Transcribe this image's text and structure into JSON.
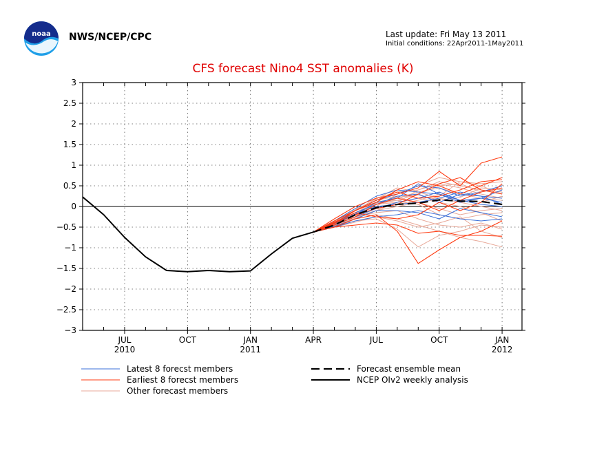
{
  "header": {
    "agency": "NWS/NCEP/CPC",
    "last_update": "Last update: Fri May 13 2011",
    "initial_conditions": "Initial conditions: 22Apr2011-1May2011",
    "logo_text": "noaa"
  },
  "colors": {
    "title": "#e00000",
    "latest": "#3a6fd8",
    "earliest": "#ff3a10",
    "other": "#e8a898",
    "mean": "#000000",
    "analysis": "#000000"
  },
  "chart_data": {
    "type": "line",
    "title": "CFS forecast Nino4 SST anomalies (K)",
    "xlabel": "",
    "ylabel": "",
    "ylim": [
      -3,
      3
    ],
    "yticks": [
      3,
      2.5,
      2,
      1.5,
      1,
      0.5,
      0,
      -0.5,
      -1,
      -1.5,
      -2,
      -2.5,
      -3
    ],
    "grid": true,
    "x_months_since_apr2010": [
      0,
      12.5
    ],
    "xticks": [
      {
        "m": 3,
        "label": "JUL",
        "year": "2010"
      },
      {
        "m": 6,
        "label": "OCT",
        "year": ""
      },
      {
        "m": 9,
        "label": "JAN",
        "year": "2011"
      },
      {
        "m": 12,
        "label": "APR",
        "year": ""
      },
      {
        "m": 15,
        "label": "JUL",
        "year": ""
      },
      {
        "m": 18,
        "label": "OCT",
        "year": ""
      },
      {
        "m": 21,
        "label": "JAN",
        "year": "2012"
      }
    ],
    "legend": [
      {
        "label": "Latest 8 forecst members",
        "style": "latest"
      },
      {
        "label": "Earliest 8 forecst members",
        "style": "earliest"
      },
      {
        "label": "Other forecast members",
        "style": "other"
      },
      {
        "label": "Forecast ensemble mean",
        "style": "mean"
      },
      {
        "label": "NCEP OIv2 weekly analysis",
        "style": "analysis"
      }
    ],
    "analysis": {
      "name": "NCEP OIv2 weekly analysis",
      "x": [
        1,
        2,
        3,
        4,
        5,
        6,
        7,
        8,
        9,
        10,
        11,
        12
      ],
      "y": [
        0.23,
        -0.2,
        -0.75,
        -1.22,
        -1.55,
        -1.58,
        -1.55,
        -1.58,
        -1.56,
        -1.15,
        -0.77,
        -0.62
      ]
    },
    "ensemble_mean": {
      "name": "Forecast ensemble mean",
      "x": [
        12,
        13,
        14,
        15,
        16,
        17,
        18,
        19,
        20,
        21
      ],
      "y": [
        -0.62,
        -0.45,
        -0.2,
        -0.03,
        0.05,
        0.08,
        0.16,
        0.13,
        0.12,
        0.05
      ]
    },
    "members_x": [
      12,
      13,
      14,
      15,
      16,
      17,
      18,
      19,
      20,
      21
    ],
    "latest_members": [
      [
        -0.62,
        -0.4,
        -0.1,
        0.15,
        0.3,
        0.5,
        0.45,
        0.25,
        0.35,
        0.5
      ],
      [
        -0.62,
        -0.45,
        -0.25,
        -0.05,
        0.1,
        0.2,
        0.35,
        0.15,
        0.05,
        0.0
      ],
      [
        -0.62,
        -0.35,
        -0.05,
        0.25,
        0.4,
        0.35,
        0.3,
        0.15,
        0.2,
        0.1
      ],
      [
        -0.62,
        -0.5,
        -0.35,
        -0.25,
        -0.2,
        -0.1,
        -0.2,
        -0.3,
        -0.35,
        -0.3
      ],
      [
        -0.62,
        -0.42,
        -0.15,
        0.05,
        0.25,
        0.3,
        0.1,
        0.3,
        0.25,
        0.2
      ],
      [
        -0.62,
        -0.48,
        -0.3,
        -0.1,
        -0.1,
        -0.15,
        -0.3,
        -0.05,
        -0.15,
        -0.25
      ],
      [
        -0.62,
        -0.4,
        -0.2,
        0.1,
        0.2,
        0.55,
        0.3,
        0.1,
        0.2,
        0.4
      ],
      [
        -0.62,
        -0.45,
        -0.18,
        0.0,
        0.05,
        0.1,
        0.2,
        0.35,
        0.25,
        0.05
      ]
    ],
    "earliest_members": [
      [
        -0.62,
        -0.3,
        0.0,
        0.2,
        0.3,
        0.45,
        0.85,
        0.5,
        1.05,
        1.2
      ],
      [
        -0.62,
        -0.5,
        -0.3,
        -0.2,
        -0.6,
        -1.38,
        -1.05,
        -0.75,
        -0.6,
        -0.35
      ],
      [
        -0.62,
        -0.35,
        -0.1,
        0.1,
        0.4,
        0.6,
        0.5,
        0.3,
        0.5,
        0.7
      ],
      [
        -0.62,
        -0.45,
        -0.25,
        0.05,
        0.2,
        0.1,
        -0.1,
        0.15,
        0.35,
        0.45
      ],
      [
        -0.62,
        -0.4,
        -0.2,
        -0.05,
        0.05,
        0.3,
        0.55,
        0.7,
        0.4,
        0.3
      ],
      [
        -0.62,
        -0.5,
        -0.45,
        -0.4,
        -0.45,
        -0.65,
        -0.6,
        -0.7,
        -0.7,
        -0.72
      ],
      [
        -0.62,
        -0.38,
        -0.15,
        -0.25,
        -0.3,
        -0.2,
        0.1,
        -0.1,
        0.1,
        0.55
      ],
      [
        -0.62,
        -0.42,
        -0.1,
        0.15,
        0.35,
        0.2,
        0.25,
        0.4,
        0.6,
        0.65
      ]
    ],
    "other_members": [
      [
        -0.62,
        -0.45,
        -0.2,
        0.05,
        0.15,
        0.3,
        0.5,
        0.55,
        0.35,
        0.5
      ],
      [
        -0.62,
        -0.5,
        -0.3,
        -0.2,
        -0.3,
        -0.45,
        -0.6,
        -0.75,
        -0.85,
        -0.98
      ],
      [
        -0.62,
        -0.4,
        -0.1,
        0.2,
        0.35,
        0.4,
        0.55,
        0.45,
        0.3,
        0.2
      ],
      [
        -0.62,
        -0.48,
        -0.35,
        -0.3,
        -0.55,
        -0.98,
        -0.7,
        -0.6,
        -0.45,
        -0.5
      ],
      [
        -0.62,
        -0.42,
        -0.15,
        0.05,
        0.1,
        0.2,
        0.1,
        0.0,
        -0.15,
        -0.35
      ],
      [
        -0.62,
        -0.35,
        -0.05,
        0.1,
        0.2,
        0.35,
        0.45,
        0.3,
        0.2,
        0.15
      ],
      [
        -0.62,
        -0.46,
        -0.25,
        -0.15,
        -0.1,
        -0.3,
        -0.45,
        -0.5,
        -0.4,
        -0.55
      ],
      [
        -0.62,
        -0.38,
        -0.1,
        0.15,
        0.25,
        0.05,
        0.25,
        0.6,
        0.5,
        0.3
      ],
      [
        -0.62,
        -0.44,
        -0.2,
        0.0,
        0.3,
        0.5,
        0.7,
        0.6,
        0.55,
        0.6
      ],
      [
        -0.62,
        -0.47,
        -0.28,
        -0.1,
        0.0,
        0.1,
        -0.05,
        -0.2,
        -0.1,
        -0.05
      ],
      [
        -0.62,
        -0.41,
        -0.18,
        0.08,
        0.22,
        0.28,
        0.15,
        0.22,
        0.45,
        0.4
      ],
      [
        -0.62,
        -0.5,
        -0.38,
        -0.25,
        -0.35,
        -0.5,
        -0.4,
        -0.25,
        -0.6,
        -0.75
      ],
      [
        -0.62,
        -0.36,
        -0.08,
        0.18,
        0.45,
        0.35,
        0.2,
        0.1,
        0.0,
        -0.1
      ],
      [
        -0.62,
        -0.43,
        -0.22,
        -0.05,
        0.05,
        0.15,
        0.3,
        0.15,
        0.1,
        0.25
      ],
      [
        -0.62,
        -0.4,
        -0.15,
        0.1,
        0.15,
        0.05,
        -0.2,
        -0.3,
        -0.2,
        -0.15
      ],
      [
        -0.62,
        -0.45,
        -0.25,
        -0.1,
        0.1,
        0.4,
        0.6,
        0.5,
        0.4,
        0.35
      ]
    ]
  }
}
